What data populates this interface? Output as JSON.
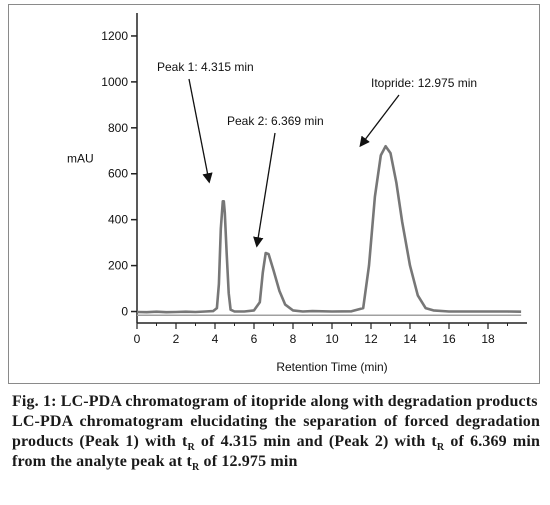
{
  "chart_data": {
    "type": "line",
    "xlabel": "Retention Time (min)",
    "ylabel": "mAU",
    "xlim": [
      0,
      20
    ],
    "ylim": [
      -50,
      1300
    ],
    "x_ticks": [
      "0",
      "2",
      "4",
      "6",
      "8",
      "10",
      "12",
      "14",
      "16",
      "18"
    ],
    "y_ticks": [
      "0",
      "200",
      "400",
      "600",
      "800",
      "1000",
      "1200"
    ],
    "grid": false,
    "series": [
      {
        "color": "#777777",
        "x": [
          0,
          0.5,
          1,
          1.5,
          2,
          2.5,
          3,
          3.5,
          3.9,
          4.1,
          4.2,
          4.3,
          4.4,
          4.45,
          4.5,
          4.6,
          4.7,
          4.8,
          5.0,
          5.5,
          6.0,
          6.3,
          6.45,
          6.6,
          6.75,
          7.0,
          7.3,
          7.6,
          8.0,
          8.5,
          9,
          10,
          11,
          11.6,
          11.9,
          12.2,
          12.5,
          12.75,
          13.0,
          13.3,
          13.6,
          14.0,
          14.4,
          14.8,
          15.2,
          16,
          17,
          18,
          19,
          19.7
        ],
        "values": [
          -2,
          -3,
          -1,
          -3,
          -2,
          -1,
          -2,
          0,
          2,
          15,
          120,
          360,
          480,
          480,
          430,
          250,
          80,
          8,
          0,
          0,
          5,
          40,
          170,
          255,
          250,
          180,
          90,
          30,
          5,
          0,
          2,
          0,
          1,
          15,
          200,
          500,
          680,
          720,
          690,
          560,
          390,
          200,
          70,
          15,
          5,
          0,
          0,
          0,
          0,
          -1
        ]
      }
    ],
    "annotations": [
      {
        "text": "Peak 1: 4.315 min",
        "x": 4.315,
        "y": 480
      },
      {
        "text": "Peak 2: 6.369 min",
        "x": 6.369,
        "y": 255
      },
      {
        "text": "Itopride: 12.975 min",
        "x": 12.975,
        "y": 720
      }
    ]
  },
  "caption": {
    "title": "Fig. 1: LC-PDA chromatogram of itopride along with degradation products",
    "desc_1": "LC-PDA chromatogram elucidating the separation of forced degradation products (Peak 1) with t",
    "desc_2": " of 4.315 min and (Peak 2) with t",
    "desc_3": " of 6.369 min from the analyte peak at t",
    "desc_4": " of 12.975 min",
    "sub": "R"
  }
}
